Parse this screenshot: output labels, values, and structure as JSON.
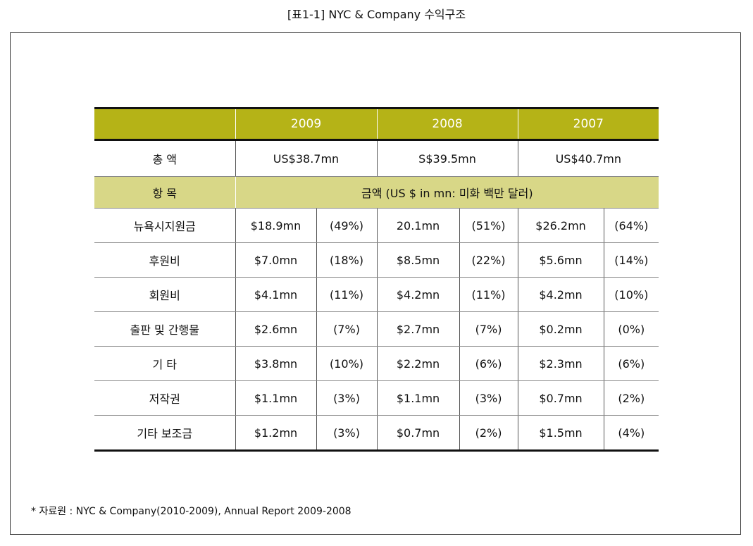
{
  "caption": "[표1-1] NYC & Company 수익구조",
  "years": [
    "2009",
    "2008",
    "2007"
  ],
  "total": {
    "label": "총 액",
    "values": [
      "US$38.7mn",
      "S$39.5mn",
      "US$40.7mn"
    ]
  },
  "items_header": {
    "label": "항 목",
    "amount_label": "금액 (US $ in mn: 미화 백만 달러)"
  },
  "rows": [
    {
      "label": "뉴욕시지원금",
      "cells": [
        "$18.9mn",
        "(49%)",
        "20.1mn",
        "(51%)",
        "$26.2mn",
        "(64%)"
      ]
    },
    {
      "label": "후원비",
      "cells": [
        "$7.0mn",
        "(18%)",
        "$8.5mn",
        "(22%)",
        "$5.6mn",
        "(14%)"
      ]
    },
    {
      "label": "회원비",
      "cells": [
        "$4.1mn",
        "(11%)",
        "$4.2mn",
        "(11%)",
        "$4.2mn",
        "(10%)"
      ]
    },
    {
      "label": "출판 및 간행물",
      "cells": [
        "$2.6mn",
        "(7%)",
        "$2.7mn",
        "(7%)",
        "$0.2mn",
        "(0%)"
      ]
    },
    {
      "label": "기 타",
      "cells": [
        "$3.8mn",
        "(10%)",
        "$2.2mn",
        "(6%)",
        "$2.3mn",
        "(6%)"
      ]
    },
    {
      "label": "저작권",
      "cells": [
        "$1.1mn",
        "(3%)",
        "$1.1mn",
        "(3%)",
        "$0.7mn",
        "(2%)"
      ]
    },
    {
      "label": "기타 보조금",
      "cells": [
        "$1.2mn",
        "(3%)",
        "$0.7mn",
        "(2%)",
        "$1.5mn",
        "(4%)"
      ]
    }
  ],
  "footnote": "* 자료원 : NYC & Company(2010-2009), Annual Report 2009-2008",
  "colors": {
    "header_olive": "#b5b317",
    "subheader_olive": "#d8d787"
  }
}
